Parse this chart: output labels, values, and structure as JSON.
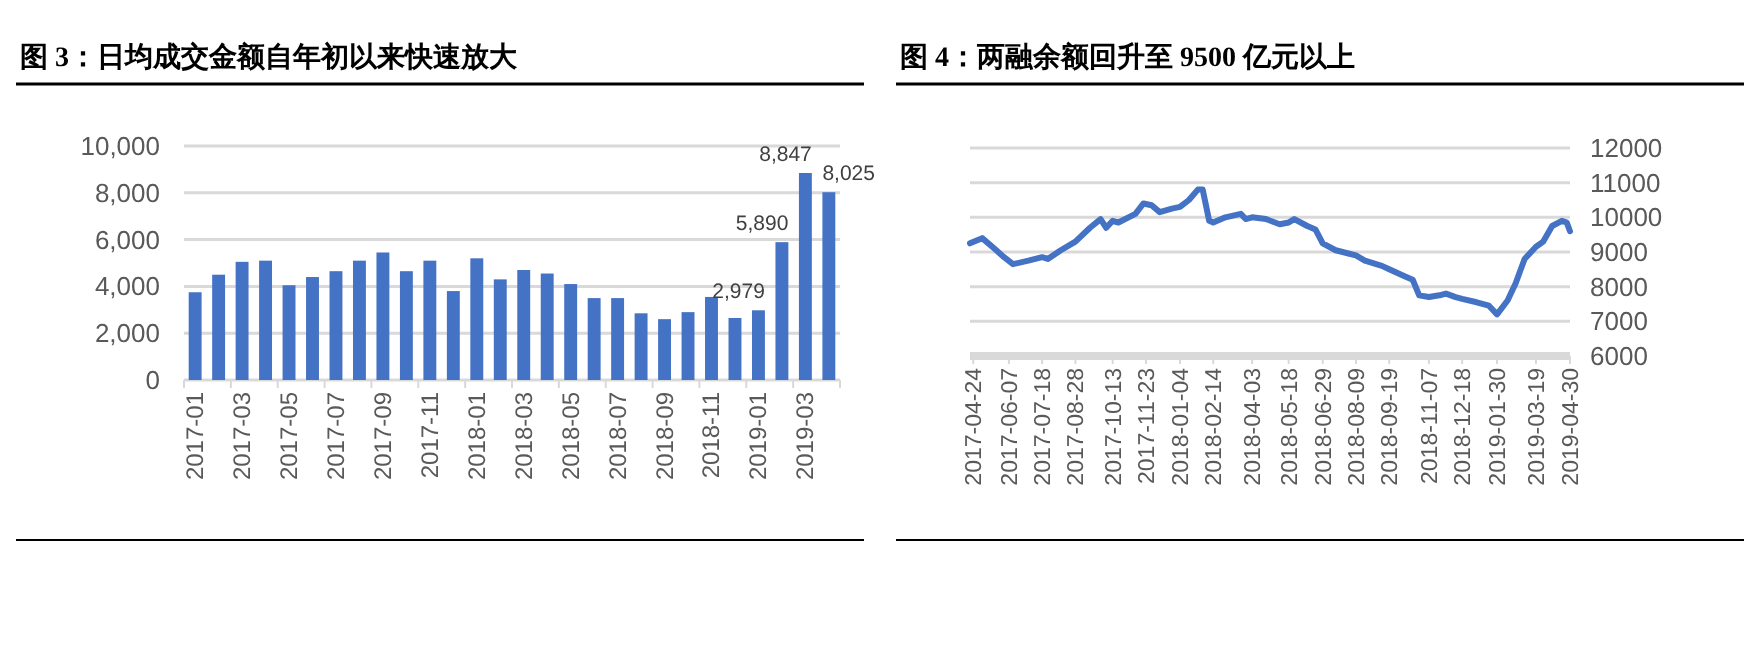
{
  "chart_data": [
    {
      "type": "bar",
      "title": "图 3：日均成交金额自年初以来快速放大",
      "categories": [
        "2017-01",
        null,
        "2017-03",
        null,
        "2017-05",
        null,
        "2017-07",
        null,
        "2017-09",
        null,
        "2017-11",
        null,
        "2018-01",
        null,
        "2018-03",
        null,
        "2018-05",
        null,
        "2018-07",
        null,
        "2018-09",
        null,
        "2018-11",
        null,
        "2019-01",
        null,
        "2019-03",
        null
      ],
      "values": [
        3750,
        4500,
        5050,
        5100,
        4050,
        4400,
        4650,
        5100,
        5450,
        4650,
        5100,
        3800,
        5200,
        4300,
        4700,
        4550,
        4100,
        3500,
        3500,
        2850,
        2600,
        2900,
        3550,
        2650,
        2979,
        5890,
        8847,
        8025
      ],
      "value_labels": [
        null,
        null,
        null,
        null,
        null,
        null,
        null,
        null,
        null,
        null,
        null,
        null,
        null,
        null,
        null,
        null,
        null,
        null,
        null,
        null,
        null,
        null,
        null,
        null,
        "2,979",
        "5,890",
        "8,847",
        "8,025"
      ],
      "color": "#4472c4",
      "ylim": [
        0,
        10000
      ],
      "yticks": [
        {
          "value": 0,
          "label": "0"
        },
        {
          "value": 2000,
          "label": "2,000"
        },
        {
          "value": 4000,
          "label": "4,000"
        },
        {
          "value": 6000,
          "label": "6,000"
        },
        {
          "value": 8000,
          "label": "8,000"
        },
        {
          "value": 10000,
          "label": "10,000"
        }
      ],
      "grid": "y"
    },
    {
      "type": "line",
      "title": "图 4：两融余额回升至 9500 亿元以上",
      "color": "#4472c4",
      "x": [
        "2017-04-20",
        "2017-05-05",
        "2017-05-20",
        "2017-06-01",
        "2017-06-12",
        "2017-07-01",
        "2017-07-18",
        "2017-07-25",
        "2017-08-10",
        "2017-08-28",
        "2017-09-15",
        "2017-09-28",
        "2017-10-05",
        "2017-10-13",
        "2017-10-20",
        "2017-11-10",
        "2017-11-20",
        "2017-11-30",
        "2017-12-10",
        "2017-12-25",
        "2018-01-04",
        "2018-01-15",
        "2018-01-26",
        "2018-02-01",
        "2018-02-09",
        "2018-02-14",
        "2018-03-01",
        "2018-03-20",
        "2018-03-26",
        "2018-04-03",
        "2018-04-20",
        "2018-05-07",
        "2018-05-18",
        "2018-05-25",
        "2018-06-10",
        "2018-06-20",
        "2018-06-29",
        "2018-07-15",
        "2018-08-01",
        "2018-08-09",
        "2018-08-20",
        "2018-09-10",
        "2018-09-19",
        "2018-10-08",
        "2018-10-18",
        "2018-10-26",
        "2018-11-07",
        "2018-11-20",
        "2018-11-28",
        "2018-12-10",
        "2018-12-18",
        "2019-01-05",
        "2019-01-20",
        "2019-01-30",
        "2019-02-12",
        "2019-02-22",
        "2019-03-05",
        "2019-03-19",
        "2019-03-28",
        "2019-04-08",
        "2019-04-20",
        "2019-04-26",
        "2019-04-30"
      ],
      "values": [
        9250,
        9400,
        9100,
        8850,
        8650,
        8750,
        8850,
        8800,
        9050,
        9300,
        9700,
        9950,
        9700,
        9900,
        9850,
        10100,
        10400,
        10350,
        10150,
        10250,
        10300,
        10500,
        10800,
        10800,
        9900,
        9850,
        10000,
        10100,
        9950,
        10000,
        9950,
        9800,
        9850,
        9950,
        9750,
        9650,
        9250,
        9050,
        8950,
        8900,
        8750,
        8600,
        8500,
        8300,
        8200,
        7750,
        7700,
        7750,
        7800,
        7700,
        7650,
        7550,
        7450,
        7200,
        7600,
        8100,
        8800,
        9150,
        9300,
        9750,
        9900,
        9850,
        9600
      ],
      "xlim": [
        "2017-04-20",
        "2019-04-30"
      ],
      "xticks": [
        "2017-04-24",
        "2017-06-07",
        "2017-07-18",
        "2017-08-28",
        "2017-10-13",
        "2017-11-23",
        "2018-01-04",
        "2018-02-14",
        "2018-04-03",
        "2018-05-18",
        "2018-06-29",
        "2018-08-09",
        "2018-09-19",
        "2018-11-07",
        "2018-12-18",
        "2019-01-30",
        "2019-03-19",
        "2019-04-30"
      ],
      "ylim": [
        6000,
        12000
      ],
      "yticks": [
        6000,
        7000,
        8000,
        9000,
        10000,
        11000,
        12000
      ],
      "grid": "y"
    }
  ]
}
